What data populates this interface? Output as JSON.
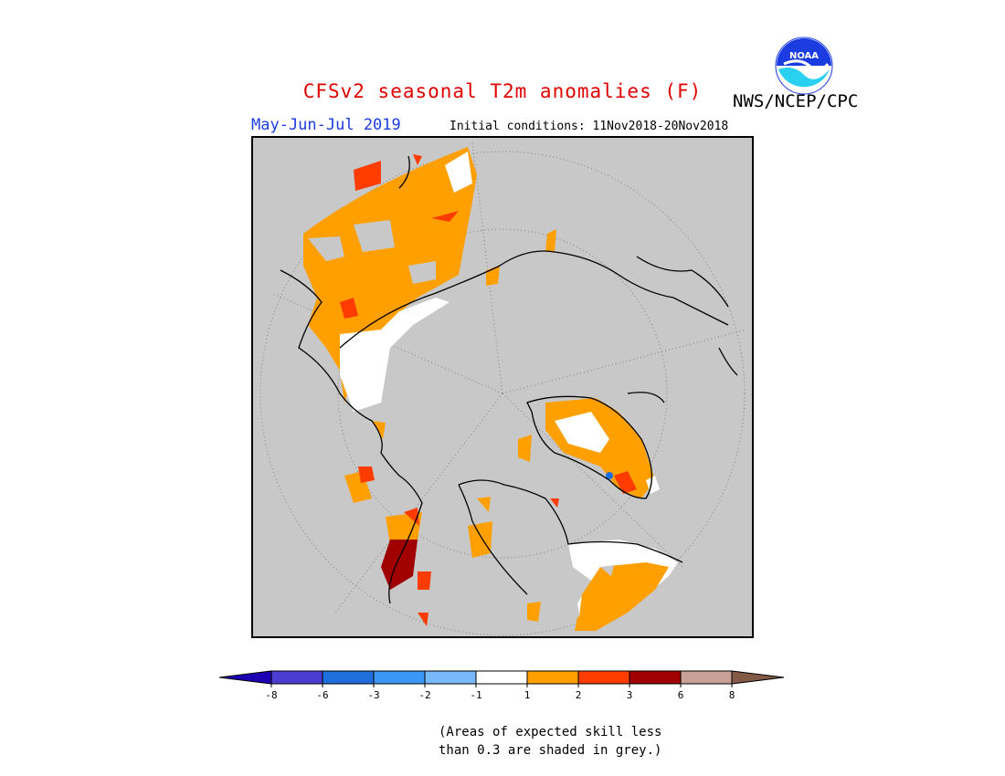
{
  "header": {
    "title": "CFSv2 seasonal T2m anomalies (F)",
    "period": "May-Jun-Jul 2019",
    "initial_conditions": "Initial conditions: 11Nov2018-20Nov2018",
    "org": "NWS/NCEP/CPC",
    "logo_text": "NOAA"
  },
  "map": {
    "projection": "north-polar-stereographic",
    "background_color": "#c8c8c8",
    "anomaly_colors": {
      "1_to_2": "#ffa000",
      "2_to_3": "#ff3c00",
      "3_to_6": "#a00000",
      "-1_to_1": "#ffffff"
    }
  },
  "legend": {
    "ticks": [
      "-8",
      "-6",
      "-3",
      "-2",
      "-1",
      "1",
      "2",
      "3",
      "6",
      "8"
    ],
    "colors": [
      "#1e00b4",
      "#4b3cd2",
      "#1e6edc",
      "#3c96f5",
      "#78b9fa",
      "#ffffff",
      "#ffa000",
      "#ff3c00",
      "#a00000",
      "#c8a096",
      "#825a46"
    ]
  },
  "note": {
    "line1": "(Areas of expected skill less",
    "line2": "than 0.3 are shaded in grey.)"
  }
}
